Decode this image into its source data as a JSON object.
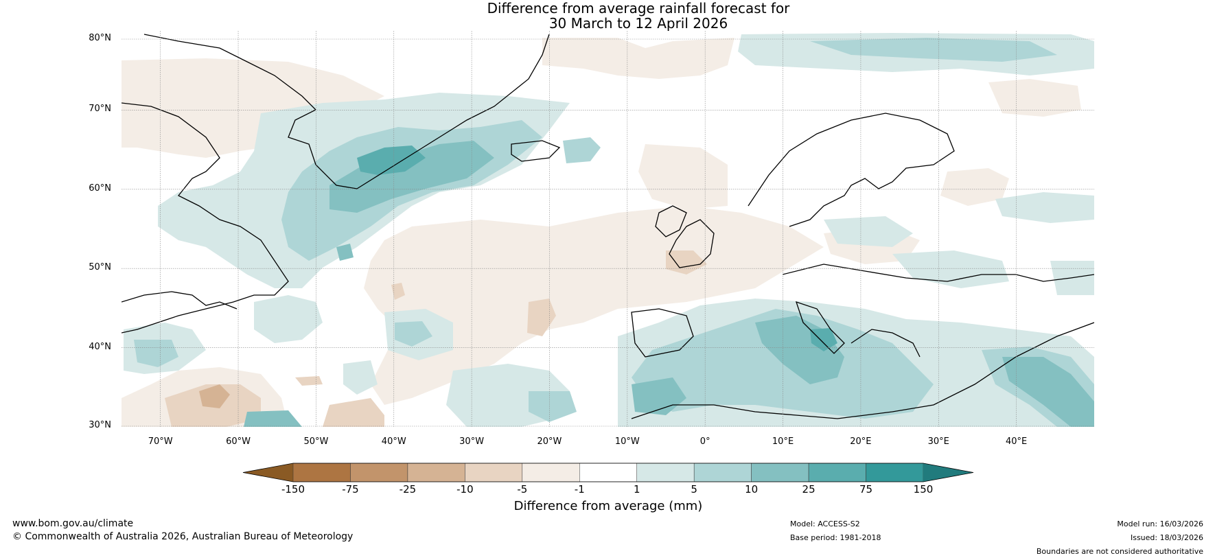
{
  "title": {
    "line1": "Difference from average rainfall forecast for",
    "line2": "30 March to 12 April 2026"
  },
  "axes": {
    "lat_labels": [
      "80°N",
      "70°N",
      "60°N",
      "50°N",
      "40°N",
      "30°N"
    ],
    "lon_labels": [
      "70°W",
      "60°W",
      "50°W",
      "40°W",
      "30°W",
      "20°W",
      "10°W",
      "0°",
      "10°E",
      "20°E",
      "30°E",
      "40°E"
    ],
    "lat_range": [
      30,
      80
    ],
    "lon_range": [
      -75,
      50
    ]
  },
  "legend": {
    "title": "Difference from average (mm)",
    "tick_labels": [
      "-150",
      "-75",
      "-25",
      "-10",
      "-5",
      "-1",
      "1",
      "5",
      "10",
      "25",
      "75",
      "150"
    ],
    "colors": [
      "#8a5a24",
      "#ad7542",
      "#c2946b",
      "#d5b394",
      "#e8d4c2",
      "#f4ede6",
      "#ffffff",
      "#d6e8e7",
      "#aed5d6",
      "#84c0c1",
      "#5aadae",
      "#33999a",
      "#217b7d"
    ]
  },
  "footer": {
    "website": "www.bom.gov.au/climate",
    "copyright": "© Commonwealth of Australia 2026, Australian Bureau of Meteorology",
    "model": "Model: ACCESS-S2",
    "base_period": "Base period: 1981-2018",
    "model_run": "Model run: 16/03/2026",
    "issued": "Issued: 18/03/2026",
    "disclaimer": "Boundaries are not considered authoritative"
  }
}
